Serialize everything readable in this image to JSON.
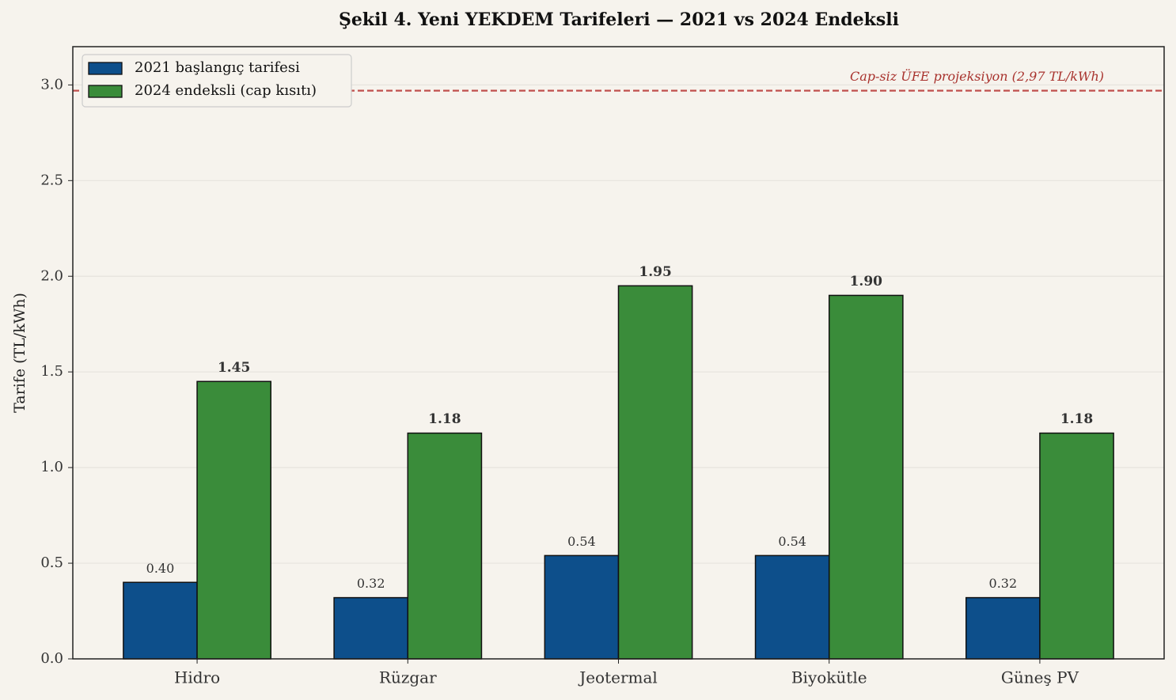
{
  "chart_data": {
    "type": "bar",
    "title": "Şekil 4. Yeni YEKDEM Tarifeleri — 2021 vs 2024 Endeksli",
    "y_label": "Tarife (TL/kWh)",
    "categories": [
      "Hidro",
      "Rüzgar",
      "Jeotermal",
      "Biyokütle",
      "Güneş PV"
    ],
    "series": [
      {
        "name": "2021 başlangıç tarifesi",
        "color": "#0d4f8b",
        "values": [
          0.4,
          0.32,
          0.54,
          0.54,
          0.32
        ],
        "value_labels": [
          "0.40",
          "0.32",
          "0.54",
          "0.54",
          "0.32"
        ]
      },
      {
        "name": "2024 endeksli (cap kısıtı)",
        "color": "#3a8c3a",
        "values": [
          1.45,
          1.18,
          1.95,
          1.9,
          1.18
        ],
        "value_labels": [
          "1.45",
          "1.18",
          "1.95",
          "1.90",
          "1.18"
        ]
      }
    ],
    "reference_line": {
      "value": 2.97,
      "label": "Cap-siz ÜFE projeksiyon (2,97 TL/kWh)",
      "color": "#c0504d"
    },
    "ylim": [
      0,
      3.2
    ],
    "yticks": [
      {
        "value": 0,
        "label": "0.0"
      },
      0.5,
      {
        "value": 1,
        "label": "1.0"
      },
      1.5,
      {
        "value": 2,
        "label": "2.0"
      },
      2.5,
      {
        "value": 3,
        "label": "3.0"
      }
    ],
    "grid": true,
    "legend": "upper-left"
  }
}
